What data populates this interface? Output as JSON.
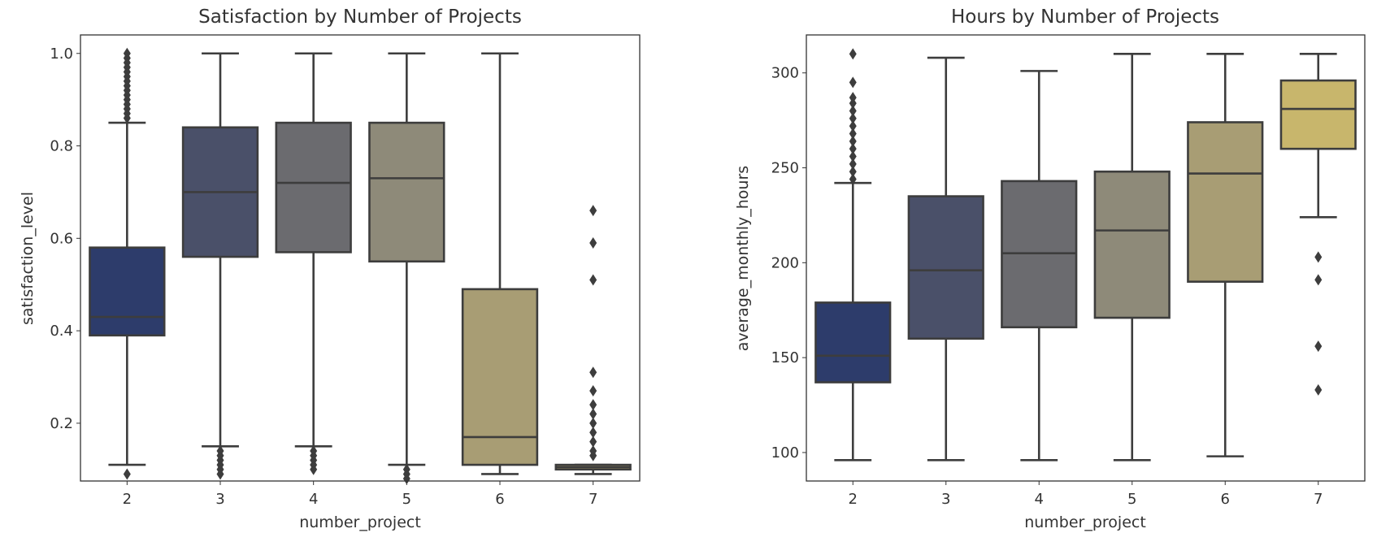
{
  "chart_data": [
    {
      "type": "box",
      "title": "Satisfaction by Number of Projects",
      "xlabel": "number_project",
      "ylabel": "satisfaction_level",
      "ylim": [
        0.075,
        1.04
      ],
      "yticks": [
        0.2,
        0.4,
        0.6,
        0.8,
        1.0
      ],
      "ytick_labels": [
        "0.2",
        "0.4",
        "0.6",
        "0.8",
        "1.0"
      ],
      "categories": [
        "2",
        "3",
        "4",
        "5",
        "6",
        "7"
      ],
      "boxes": [
        {
          "q1": 0.39,
          "median": 0.43,
          "q3": 0.58,
          "whisker_low": 0.11,
          "whisker_high": 0.85,
          "outliers": [
            0.09,
            0.86,
            0.87,
            0.88,
            0.89,
            0.9,
            0.91,
            0.92,
            0.93,
            0.94,
            0.95,
            0.96,
            0.97,
            0.98,
            0.99,
            1.0
          ]
        },
        {
          "q1": 0.56,
          "median": 0.7,
          "q3": 0.84,
          "whisker_low": 0.15,
          "whisker_high": 1.0,
          "outliers": [
            0.09,
            0.1,
            0.11,
            0.12,
            0.13,
            0.14
          ]
        },
        {
          "q1": 0.57,
          "median": 0.72,
          "q3": 0.85,
          "whisker_low": 0.15,
          "whisker_high": 1.0,
          "outliers": [
            0.1,
            0.11,
            0.12,
            0.13,
            0.14
          ]
        },
        {
          "q1": 0.55,
          "median": 0.73,
          "q3": 0.85,
          "whisker_low": 0.11,
          "whisker_high": 1.0,
          "outliers": [
            0.08,
            0.09,
            0.1
          ]
        },
        {
          "q1": 0.11,
          "median": 0.17,
          "q3": 0.49,
          "whisker_low": 0.09,
          "whisker_high": 1.0,
          "outliers": []
        },
        {
          "q1": 0.1,
          "median": 0.105,
          "q3": 0.11,
          "whisker_low": 0.09,
          "whisker_high": 0.11,
          "outliers": [
            0.13,
            0.14,
            0.16,
            0.18,
            0.2,
            0.22,
            0.24,
            0.27,
            0.31,
            0.51,
            0.59,
            0.66
          ]
        }
      ]
    },
    {
      "type": "box",
      "title": "Hours by Number of Projects",
      "xlabel": "number_project",
      "ylabel": "average_monthly_hours",
      "ylim": [
        85,
        320
      ],
      "yticks": [
        100,
        150,
        200,
        250,
        300
      ],
      "ytick_labels": [
        "100",
        "150",
        "200",
        "250",
        "300"
      ],
      "categories": [
        "2",
        "3",
        "4",
        "5",
        "6",
        "7"
      ],
      "boxes": [
        {
          "q1": 137,
          "median": 151,
          "q3": 179,
          "whisker_low": 96,
          "whisker_high": 242,
          "outliers": [
            244,
            248,
            252,
            256,
            260,
            264,
            268,
            272,
            276,
            280,
            284,
            287,
            295,
            310
          ]
        },
        {
          "q1": 160,
          "median": 196,
          "q3": 235,
          "whisker_low": 96,
          "whisker_high": 308,
          "outliers": []
        },
        {
          "q1": 166,
          "median": 205,
          "q3": 243,
          "whisker_low": 96,
          "whisker_high": 301,
          "outliers": []
        },
        {
          "q1": 171,
          "median": 217,
          "q3": 248,
          "whisker_low": 96,
          "whisker_high": 310,
          "outliers": []
        },
        {
          "q1": 190,
          "median": 247,
          "q3": 274,
          "whisker_low": 98,
          "whisker_high": 310,
          "outliers": []
        },
        {
          "q1": 260,
          "median": 281,
          "q3": 296,
          "whisker_low": 224,
          "whisker_high": 310,
          "outliers": [
            133,
            156,
            191,
            203
          ]
        }
      ]
    }
  ],
  "colors": {
    "box_fills": [
      "#2d3c6b",
      "#4a5069",
      "#6b6b6f",
      "#8e8a79",
      "#a89d74",
      "#c8b66c"
    ],
    "line": "#3d3d3d",
    "axes": "#333333"
  }
}
